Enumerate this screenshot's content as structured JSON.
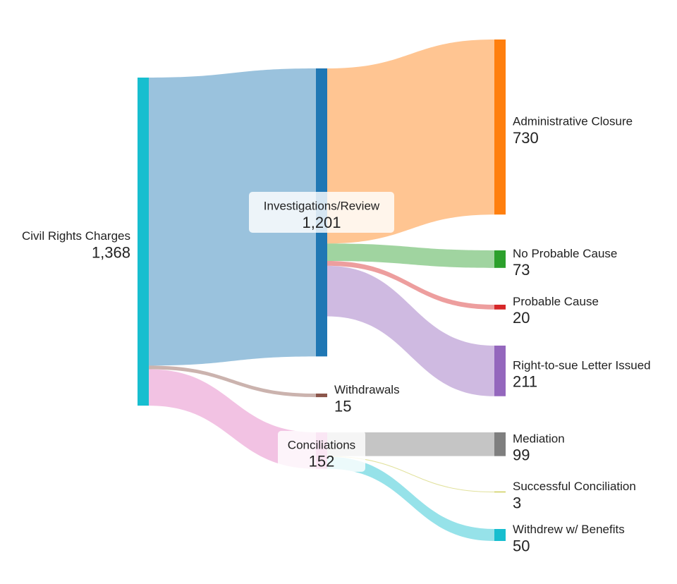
{
  "chart_data": {
    "type": "sankey",
    "title": "",
    "nodes": [
      {
        "id": "civil",
        "label": "Civil Rights Charges",
        "value": "1,368",
        "color": "#17becf"
      },
      {
        "id": "inv",
        "label": "Investigations/Review",
        "value": "1,201",
        "color": "#1f77b4"
      },
      {
        "id": "wd",
        "label": "Withdrawals",
        "value": "15",
        "color": "#8c564b"
      },
      {
        "id": "con",
        "label": "Conciliations",
        "value": "152",
        "color": "#e377c2"
      },
      {
        "id": "adm",
        "label": "Administrative Closure",
        "value": "730",
        "color": "#ff7f0e"
      },
      {
        "id": "npc",
        "label": "No Probable Cause",
        "value": "73",
        "color": "#2ca02c"
      },
      {
        "id": "pc",
        "label": "Probable Cause",
        "value": "20",
        "color": "#d62728"
      },
      {
        "id": "rts",
        "label": "Right-to-sue Letter Issued",
        "value": "211",
        "color": "#9467bd"
      },
      {
        "id": "med",
        "label": "Mediation",
        "value": "99",
        "color": "#7f7f7f"
      },
      {
        "id": "sc",
        "label": "Successful Conciliation",
        "value": "3",
        "color": "#bcbd22"
      },
      {
        "id": "wb",
        "label": "Withdrew w/ Benefits",
        "value": "50",
        "color": "#17becf"
      }
    ],
    "links": [
      {
        "source": "civil",
        "target": "inv",
        "value": 1201
      },
      {
        "source": "civil",
        "target": "wd",
        "value": 15
      },
      {
        "source": "civil",
        "target": "con",
        "value": 152
      },
      {
        "source": "inv",
        "target": "adm",
        "value": 730
      },
      {
        "source": "inv",
        "target": "npc",
        "value": 73
      },
      {
        "source": "inv",
        "target": "pc",
        "value": 20
      },
      {
        "source": "inv",
        "target": "rts",
        "value": 211
      },
      {
        "source": "con",
        "target": "med",
        "value": 99
      },
      {
        "source": "con",
        "target": "sc",
        "value": 3
      },
      {
        "source": "con",
        "target": "wb",
        "value": 50
      }
    ]
  }
}
